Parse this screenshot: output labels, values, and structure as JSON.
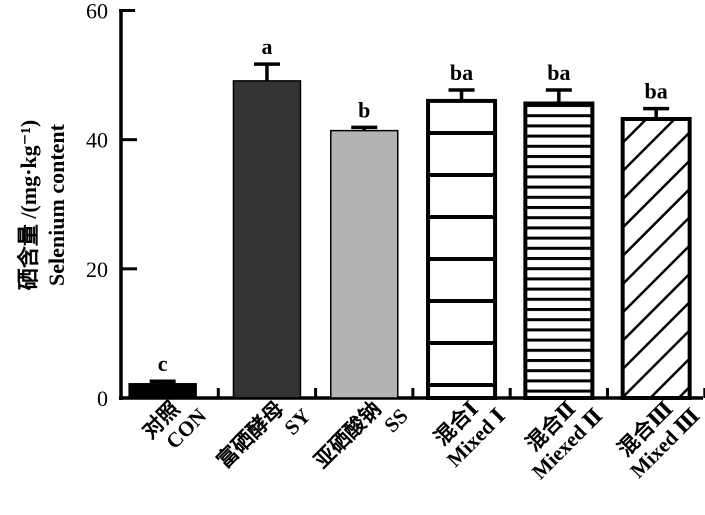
{
  "chart_data": {
    "type": "bar",
    "title": "",
    "ylabel_cn": "硒含量 /(mg·kg⁻¹)",
    "ylabel_en": "Selenium content",
    "xlabel": "",
    "ylim": [
      0,
      60
    ],
    "yticks": [
      "0",
      "20",
      "40",
      "60"
    ],
    "grid": false,
    "categories": [
      {
        "cn": "对照",
        "en": "CON"
      },
      {
        "cn": "富硒酵母",
        "en": "SY"
      },
      {
        "cn": "亚硒酸钠",
        "en": "SS"
      },
      {
        "cn": "混合Ⅰ",
        "en": "Mixed Ⅰ"
      },
      {
        "cn": "混合Ⅱ",
        "en": "Miexed Ⅱ"
      },
      {
        "cn": "混合Ⅲ",
        "en": "Mixed Ⅲ"
      }
    ],
    "values": [
      2.2,
      49.1,
      41.4,
      46.0,
      45.6,
      43.2
    ],
    "errors": [
      0.4,
      2.6,
      0.5,
      1.7,
      2.1,
      1.6
    ],
    "significance": [
      "c",
      "a",
      "b",
      "ba",
      "ba",
      "ba"
    ],
    "fills": [
      "solid-black",
      "solid-dark-gray",
      "solid-light-gray",
      "wide-horizontal-stripes",
      "dense-horizontal-stripes",
      "diagonal-hatch"
    ],
    "colors": {
      "solid-black": "#000000",
      "solid-dark-gray": "#333333",
      "solid-light-gray": "#b3b3b3"
    }
  }
}
